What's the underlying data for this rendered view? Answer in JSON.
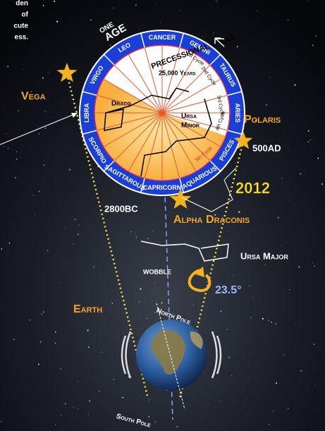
{
  "intro_fragments": [
    "den",
    "of",
    "cute",
    "ess."
  ],
  "cycle": {
    "one": "ONE",
    "age": "AGE",
    "title": "PRECESSIONAL CYCLE",
    "years": "25,000 Years",
    "signs": [
      "CANCER",
      "GEMINI",
      "TAURUS",
      "ARIES",
      "PISCES",
      "AQUARIOUS",
      "CAPRICORN",
      "SAGITTAROUS",
      "SCORPIO",
      "LIBRA",
      "VIRGO",
      "LEO"
    ],
    "cycles": [
      "1st Cycle",
      "2nd Cycle",
      "3rd Cycle",
      "4th Cycle",
      "5th Cycle"
    ]
  },
  "constellations": {
    "draco": "Draco",
    "ursa_minor_1": "Ursa",
    "ursa_minor_2": "Minor",
    "ursa_major": "Ursa Major"
  },
  "stars": {
    "vega": "Vega",
    "polaris": "Polaris",
    "polaris_date": "500AD",
    "alpha_draconis": "Alpha Draconis",
    "alpha_date": "2800BC",
    "now": "2012"
  },
  "earth": {
    "label": "Earth",
    "wobble": "WOBBLE",
    "tilt": "23.5°",
    "north_pole": "North Pole",
    "south_pole": "South Pole"
  }
}
